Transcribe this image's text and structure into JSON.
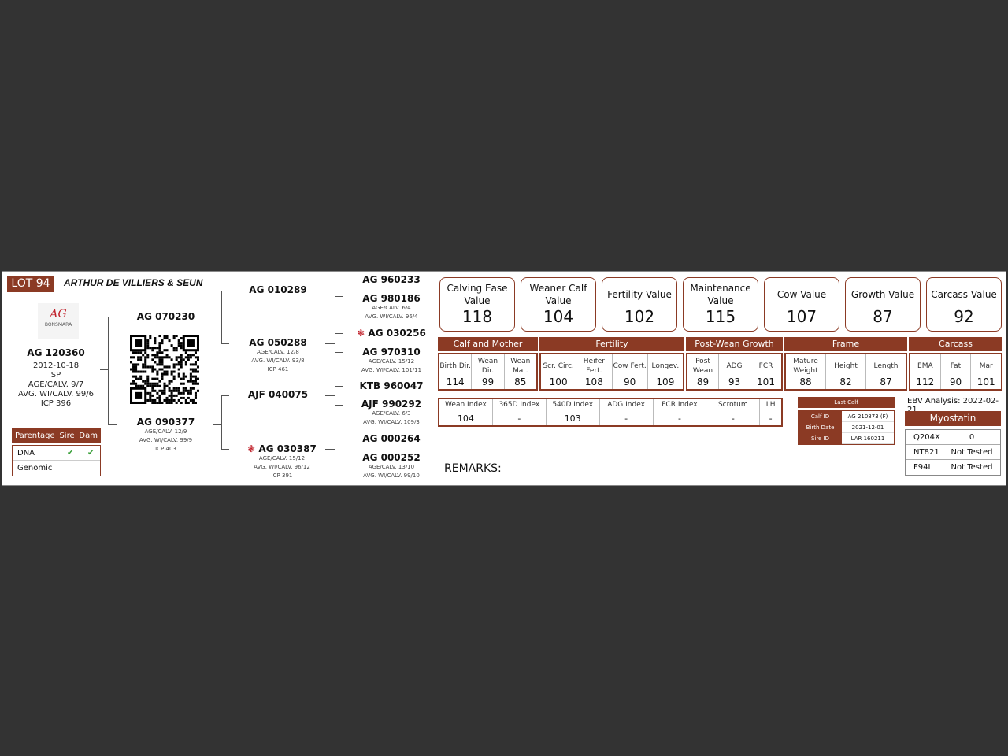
{
  "header": {
    "lot": "LOT 94",
    "owner": "ARTHUR DE VILLIERS & SEUN"
  },
  "logo": {
    "mark": "AG",
    "text": "BONSMARA"
  },
  "animal": {
    "id": "AG 120360",
    "birth_date": "2012-10-18",
    "type": "SP",
    "age_calv": "AGE/CALV. 9/7",
    "avg_wi": "AVG. WI/CALV. 99/6",
    "icp": "ICP 396"
  },
  "parentage": {
    "headers": [
      "Parentage",
      "Sire",
      "Dam"
    ],
    "rows": [
      {
        "label": "DNA",
        "sire": "✔",
        "dam": "✔"
      },
      {
        "label": "Genomic",
        "sire": "",
        "dam": ""
      }
    ]
  },
  "pedigree": {
    "sire": {
      "id": "AG 070230"
    },
    "dam": {
      "id": "AG 090377",
      "lines": [
        "AGE/CALV. 12/9",
        "AVG. WI/CALV. 99/9",
        "ICP 403"
      ]
    },
    "ss": {
      "id": "AG 010289"
    },
    "sd": {
      "id": "AG 050288",
      "lines": [
        "AGE/CALV. 12/8",
        "AVG. WI/CALV. 93/8",
        "ICP 461"
      ]
    },
    "ds": {
      "id": "AJF 040075"
    },
    "dd": {
      "id": "AG 030387",
      "lines": [
        "AGE/CALV. 15/12",
        "AVG. WI/CALV. 96/12",
        "ICP 391"
      ]
    },
    "g": [
      {
        "id": "AG 960233",
        "lines": []
      },
      {
        "id": "AG 980186",
        "lines": [
          "AGE/CALV. 6/4",
          "AVG. WI/CALV. 96/4"
        ]
      },
      {
        "id": "AG 030256",
        "lines": []
      },
      {
        "id": "AG 970310",
        "lines": [
          "AGE/CALV. 15/12",
          "AVG. WI/CALV. 101/11"
        ]
      },
      {
        "id": "KTB 960047",
        "lines": []
      },
      {
        "id": "AJF 990292",
        "lines": [
          "AGE/CALV. 6/3",
          "AVG. WI/CALV. 109/3"
        ]
      },
      {
        "id": "AG 000264",
        "lines": []
      },
      {
        "id": "AG 000252",
        "lines": [
          "AGE/CALV. 13/10",
          "AVG. WI/CALV. 99/10"
        ]
      }
    ]
  },
  "values": [
    {
      "label": "Calving Ease Value",
      "value": "118"
    },
    {
      "label": "Weaner Calf Value",
      "value": "104"
    },
    {
      "label": "Fertility Value",
      "value": "102"
    },
    {
      "label": "Maintenance Value",
      "value": "115"
    },
    {
      "label": "Cow Value",
      "value": "107"
    },
    {
      "label": "Growth Value",
      "value": "87"
    },
    {
      "label": "Carcass Value",
      "value": "92"
    }
  ],
  "sections": [
    {
      "title": "Calf and Mother",
      "cells": [
        {
          "l": "Birth Dir.",
          "v": "114"
        },
        {
          "l": "Wean Dir.",
          "v": "99"
        },
        {
          "l": "Wean Mat.",
          "v": "85"
        }
      ]
    },
    {
      "title": "Fertility",
      "cells": [
        {
          "l": "Scr. Circ.",
          "v": "100"
        },
        {
          "l": "Heifer Fert.",
          "v": "108"
        },
        {
          "l": "Cow Fert.",
          "v": "90"
        },
        {
          "l": "Longev.",
          "v": "109"
        }
      ]
    },
    {
      "title": "Post-Wean Growth",
      "cells": [
        {
          "l": "Post Wean",
          "v": "89"
        },
        {
          "l": "ADG",
          "v": "93"
        },
        {
          "l": "FCR",
          "v": "101"
        }
      ]
    },
    {
      "title": "Frame",
      "cells": [
        {
          "l": "Mature Weight",
          "v": "88"
        },
        {
          "l": "Height",
          "v": "82"
        },
        {
          "l": "Length",
          "v": "87"
        }
      ]
    },
    {
      "title": "Carcass",
      "cells": [
        {
          "l": "EMA",
          "v": "112"
        },
        {
          "l": "Fat",
          "v": "90"
        },
        {
          "l": "Mar",
          "v": "101"
        }
      ]
    }
  ],
  "indexes": [
    {
      "l": "Wean Index",
      "v": "104"
    },
    {
      "l": "365D Index",
      "v": "-"
    },
    {
      "l": "540D Index",
      "v": "103"
    },
    {
      "l": "ADG Index",
      "v": "-"
    },
    {
      "l": "FCR Index",
      "v": "-"
    },
    {
      "l": "Scrotum",
      "v": "-"
    },
    {
      "l": "LH",
      "v": "-"
    }
  ],
  "last_calf": {
    "title": "Last Calf",
    "rows": [
      {
        "l": "Calf ID",
        "v": "AG 210873 (F)"
      },
      {
        "l": "Birth Date",
        "v": "2021-12-01"
      },
      {
        "l": "Sire ID",
        "v": "LAR 160211"
      }
    ]
  },
  "ebv": "EBV Analysis: 2022-02-21",
  "myostatin": {
    "title": "Myostatin",
    "rows": [
      {
        "l": "Q204X",
        "v": "0"
      },
      {
        "l": "NT821",
        "v": "Not Tested"
      },
      {
        "l": "F94L",
        "v": "Not Tested"
      }
    ]
  },
  "remarks": "REMARKS:",
  "colors": {
    "brand": "#8b3a24",
    "check": "#3aa03a",
    "background": "#333333"
  }
}
